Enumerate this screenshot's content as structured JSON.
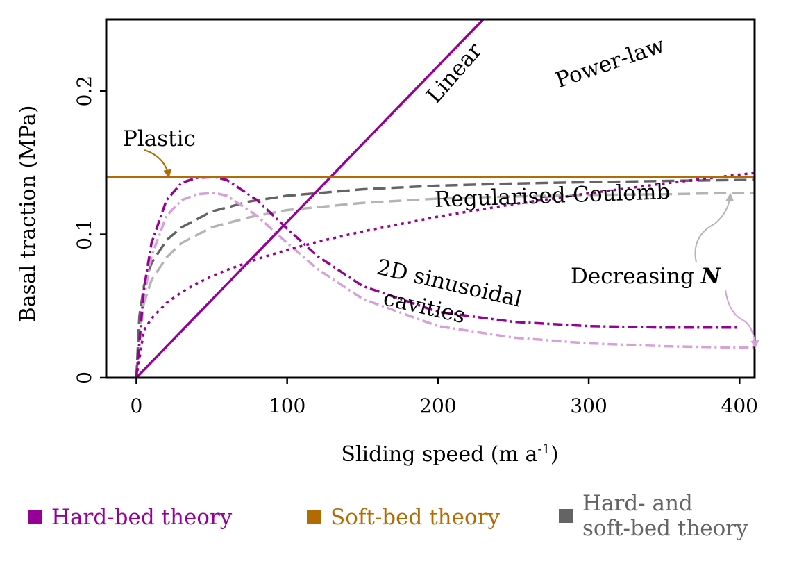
{
  "chart_data": {
    "type": "line",
    "title": "",
    "xlabel": "Sliding speed (m a",
    "xlabel_sup": "-1",
    "xlabel_end": ")",
    "ylabel": "Basal traction (MPa)",
    "xlim": [
      -20,
      410
    ],
    "ylim": [
      0,
      0.25
    ],
    "xticks": [
      0,
      100,
      200,
      300,
      400
    ],
    "xtick_labels": [
      "0",
      "100",
      "200",
      "300",
      "400"
    ],
    "yticks": [
      0,
      0.1,
      0.2
    ],
    "ytick_labels": [
      "0",
      "0.1",
      "0.2"
    ],
    "series": [
      {
        "name": "Linear",
        "theory": "hard",
        "style": "solid",
        "color": "#960096",
        "x": [
          0,
          230
        ],
        "y": [
          0,
          0.25
        ]
      },
      {
        "name": "Power-law",
        "theory": "hard",
        "style": "dotted",
        "color": "#960096",
        "x": [
          0,
          5,
          10,
          20,
          30,
          40,
          50,
          60,
          80,
          100,
          120,
          150,
          200,
          250,
          300,
          350,
          400,
          410
        ],
        "y": [
          0,
          0.0329,
          0.0414,
          0.0522,
          0.0597,
          0.0657,
          0.0708,
          0.0752,
          0.0828,
          0.0892,
          0.0948,
          0.1021,
          0.1124,
          0.1211,
          0.1287,
          0.1355,
          0.1417,
          0.1429
        ]
      },
      {
        "name": "Plastic",
        "theory": "soft",
        "style": "solid",
        "color": "#B26B00",
        "x": [
          -20,
          410
        ],
        "y": [
          0.14,
          0.14
        ]
      },
      {
        "name": "2D sinusoidal cavities (high N)",
        "theory": "hard",
        "style": "dashdot",
        "color": "#960096",
        "x": [
          0,
          5,
          10,
          20,
          30,
          40,
          52,
          60,
          80,
          100,
          120,
          150,
          200,
          250,
          300,
          350,
          400
        ],
        "y": [
          0,
          0.062,
          0.094,
          0.124,
          0.136,
          0.1395,
          0.14,
          0.138,
          0.124,
          0.104,
          0.085,
          0.064,
          0.046,
          0.039,
          0.036,
          0.035,
          0.035
        ]
      },
      {
        "name": "2D sinusoidal cavities (low N)",
        "theory": "hard",
        "style": "dashdot",
        "color": "#D8A0D8",
        "x": [
          0,
          5,
          10,
          20,
          30,
          40,
          52,
          60,
          80,
          100,
          120,
          150,
          200,
          250,
          300,
          350,
          400,
          410
        ],
        "y": [
          0,
          0.055,
          0.085,
          0.113,
          0.124,
          0.128,
          0.129,
          0.127,
          0.113,
          0.094,
          0.076,
          0.055,
          0.036,
          0.028,
          0.024,
          0.022,
          0.021,
          0.021
        ]
      },
      {
        "name": "Regularised-Coulomb (high N)",
        "theory": "both",
        "style": "dashed",
        "color": "#646464",
        "x": [
          0,
          2,
          5,
          10,
          20,
          30,
          50,
          75,
          100,
          150,
          200,
          250,
          300,
          350,
          400,
          410
        ],
        "y": [
          0,
          0.043,
          0.064,
          0.08,
          0.096,
          0.105,
          0.116,
          0.123,
          0.127,
          0.1315,
          0.134,
          0.1355,
          0.1365,
          0.1373,
          0.138,
          0.1381
        ]
      },
      {
        "name": "Regularised-Coulomb (low N)",
        "theory": "both",
        "style": "dashed",
        "color": "#B4B4B4",
        "x": [
          0,
          2,
          5,
          10,
          20,
          30,
          50,
          75,
          100,
          150,
          200,
          250,
          300,
          350,
          400,
          410
        ],
        "y": [
          0,
          0.033,
          0.052,
          0.068,
          0.084,
          0.094,
          0.105,
          0.112,
          0.117,
          0.122,
          0.125,
          0.1265,
          0.1275,
          0.128,
          0.129,
          0.129
        ]
      }
    ],
    "annotations": {
      "linear": "Linear",
      "power_law": "Power-law",
      "plastic": "Plastic",
      "coulomb": "Regularised-Coulomb",
      "cavities_line1": "2D sinusoidal",
      "cavities_line2": "cavities",
      "decreasing": "Decreasing ",
      "decreasing_var": "N"
    }
  },
  "legend": {
    "items": [
      {
        "label": "Hard-bed theory",
        "color": "#960096"
      },
      {
        "label": "Soft-bed theory",
        "color": "#B26B00"
      },
      {
        "label": "Hard- and\nsoft-bed theory",
        "color": "#646464"
      }
    ]
  },
  "colors": {
    "hard": "#960096",
    "hard_light": "#D8A0D8",
    "soft": "#B26B00",
    "both": "#646464",
    "both_light": "#B4B4B4"
  }
}
